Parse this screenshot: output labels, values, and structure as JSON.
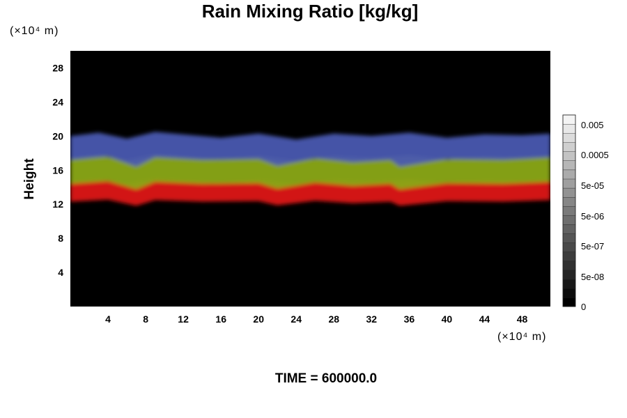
{
  "chart_data": {
    "type": "heatmap",
    "title": "Rain Mixing Ratio [kg/kg]",
    "ylabel": "Height",
    "x_unit_label": "(×10⁴ m)",
    "y_unit_label": "(×10⁴ m)",
    "xlim": [
      0,
      51
    ],
    "ylim": [
      0,
      30
    ],
    "x_ticks": [
      "4",
      "8",
      "12",
      "16",
      "20",
      "24",
      "28",
      "32",
      "36",
      "40",
      "44",
      "48"
    ],
    "x_tick_values": [
      4,
      8,
      12,
      16,
      20,
      24,
      28,
      32,
      36,
      40,
      44,
      48
    ],
    "y_ticks": [
      "4",
      "8",
      "12",
      "16",
      "20",
      "24",
      "28"
    ],
    "y_tick_values": [
      4,
      8,
      12,
      16,
      20,
      24,
      28
    ],
    "bands": [
      {
        "name": "red",
        "color": "#dd1414",
        "base": 12.3,
        "top": 14.6
      },
      {
        "name": "yellow-green",
        "color": "#8aa814",
        "base": 14.4,
        "top": 17.4
      },
      {
        "name": "blue",
        "color": "#4a5ab0",
        "base": 17.2,
        "top": 20.0
      }
    ],
    "background": "#000000",
    "colorbar": {
      "labels": [
        "0.005",
        "0.0005",
        "5e-05",
        "5e-06",
        "5e-07",
        "5e-08",
        "0"
      ],
      "levels": 21,
      "color_low": "#000000",
      "color_high": "#f4f4f4"
    },
    "footer": "TIME = 600000.0"
  }
}
